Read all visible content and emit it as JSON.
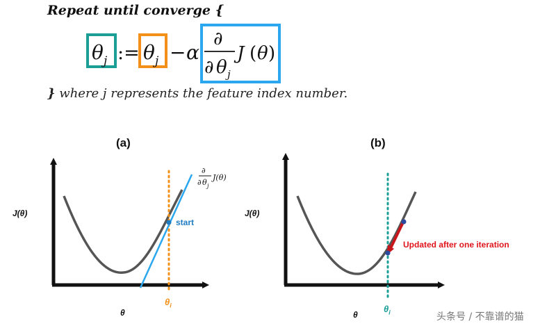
{
  "header": {
    "text": "Repeat until converge {"
  },
  "formula": {
    "theta_symbol": "θ",
    "subscript": "j",
    "assign": ":=",
    "minus": "−",
    "alpha": "α",
    "partial": "∂",
    "J": "J",
    "lparen": "(",
    "rparen": ")",
    "box_colors": {
      "lhs": "#1a9e96",
      "rhs": "#f39019",
      "gradient": "#2aa7ee"
    }
  },
  "footer": {
    "brace": "}",
    "text": " where j represents the feature index number."
  },
  "panel_a": {
    "label": "(a)",
    "y_axis_label": "J(θ)",
    "x_axis_label": "θ",
    "theta_i": {
      "base": "θ",
      "sub": "i"
    },
    "start_label": "start",
    "tangent_label": {
      "partial": "∂",
      "theta": "θ",
      "sub": "j",
      "fn": "J(θ)"
    },
    "colors": {
      "curve": "#555555",
      "tangent": "#2aa7ee",
      "dotted": "#f39019",
      "point": "#1f7cc2",
      "theta_i": "#f39019"
    }
  },
  "panel_b": {
    "label": "(b)",
    "y_axis_label": "J(θ)",
    "x_axis_label": "θ",
    "theta_i": {
      "base": "θ",
      "sub": "i"
    },
    "update_label": "Updated after one iteration",
    "colors": {
      "curve": "#555555",
      "dotted": "#1a9e96",
      "arrow": "#c8161d",
      "point": "#2b4aa0",
      "theta_i": "#1a9e96"
    }
  },
  "watermark": "头条号 / 不靠谱的猫"
}
